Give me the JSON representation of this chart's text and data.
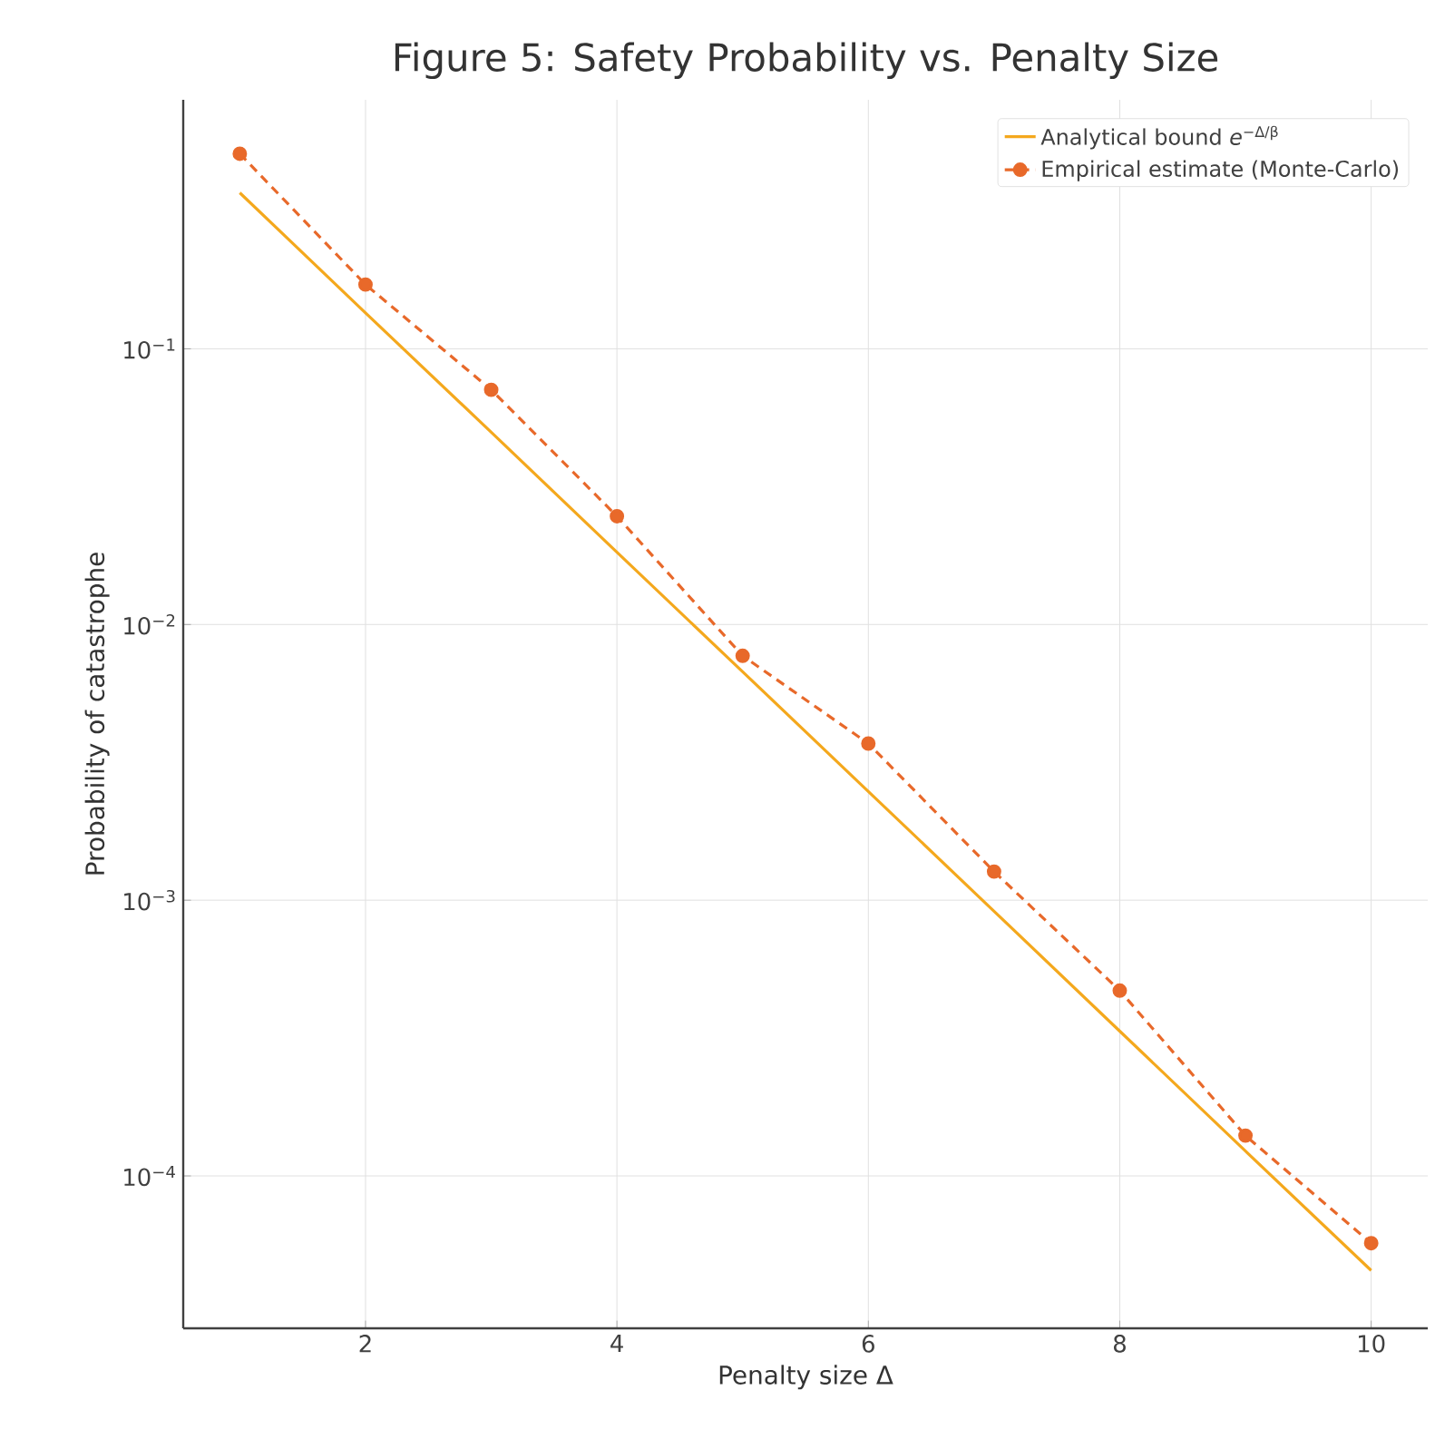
{
  "chart_data": {
    "type": "line",
    "title": "Figure 5: Safety Probability vs. Penalty Size",
    "xlabel": "Penalty size Δ",
    "ylabel": "Probability of catastrophe",
    "x": [
      1,
      2,
      3,
      4,
      5,
      6,
      7,
      8,
      9,
      10
    ],
    "series": [
      {
        "name": "Analytical bound *e*$^{−Δ/β}$",
        "color": "#f4a81d",
        "line_style": "solid",
        "marker": "none",
        "values": [
          0.368,
          0.135,
          0.0498,
          0.0183,
          0.00674,
          0.00248,
          0.000912,
          0.000335,
          0.000123,
          4.54e-05
        ]
      },
      {
        "name": "Empirical estimate (Monte-Carlo)",
        "color": "#e8692a",
        "line_style": "dashed",
        "marker": "circle",
        "values": [
          0.51,
          0.171,
          0.071,
          0.0247,
          0.0077,
          0.0037,
          0.00127,
          0.00047,
          0.00014,
          5.7e-05
        ]
      }
    ],
    "log": "y",
    "grid": true,
    "legend": "top right",
    "xlim": [
      0.55,
      10.45
    ],
    "xticks": [
      2,
      4,
      6,
      8,
      10
    ],
    "ylim": [
      2.8e-05,
      0.8
    ],
    "yticks": [
      {
        "value": 0.1,
        "label": "10$^{−1}$"
      },
      {
        "value": 0.01,
        "label": "10$^{−2}$"
      },
      {
        "value": 0.001,
        "label": "10$^{−3}$"
      },
      {
        "value": 0.0001,
        "label": "10$^{−4}$"
      }
    ]
  }
}
